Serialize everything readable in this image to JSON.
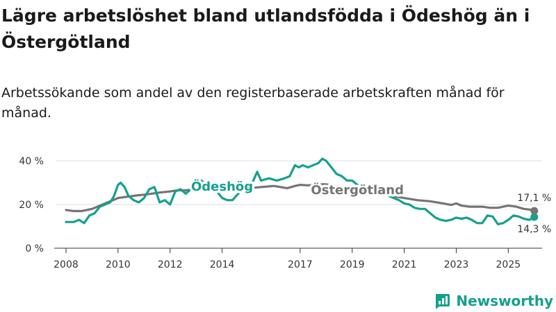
{
  "title": "Lägre arbetslöshet bland utlandsfödda i Ödeshög än i Östergötland",
  "subtitle": "Arbetssökande som andel av den registerbaserade arbetskraften månad för månad.",
  "brand": {
    "name": "Newsworthy"
  },
  "colors": {
    "odeshog": "#14a08e",
    "ostergotland": "#747474",
    "grid": "#dddddd",
    "axis": "#333333"
  },
  "chart_data": {
    "type": "line",
    "title": "Lägre arbetslöshet bland utlandsfödda i Ödeshög än i Östergötland",
    "subtitle": "Arbetssökande som andel av den registerbaserade arbetskraften månad för månad.",
    "xlabel": "",
    "ylabel": "",
    "xlim": [
      2007.6,
      2026.3
    ],
    "ylim": [
      0,
      40
    ],
    "grid": true,
    "legend": "inline labels",
    "x_ticks": [
      2008,
      2010,
      2012,
      2014,
      2017,
      2019,
      2021,
      2023,
      2025
    ],
    "x_tick_labels": [
      "2008",
      "2010",
      "2012",
      "2014",
      "2017",
      "2019",
      "2021",
      "2023",
      "2025"
    ],
    "y_ticks": [
      0,
      20,
      40
    ],
    "y_tick_labels": [
      "0 %",
      "20 %",
      "40 %"
    ],
    "series": [
      {
        "name": "Ödeshög",
        "label": "Ödeshög",
        "last_value_label": "14,3 %",
        "points": [
          [
            2008.0,
            12
          ],
          [
            2008.3,
            12
          ],
          [
            2008.5,
            13
          ],
          [
            2008.7,
            11.5
          ],
          [
            2008.9,
            15
          ],
          [
            2009.1,
            16
          ],
          [
            2009.3,
            19
          ],
          [
            2009.5,
            20
          ],
          [
            2009.7,
            21
          ],
          [
            2009.85,
            24
          ],
          [
            2010.0,
            29
          ],
          [
            2010.1,
            30
          ],
          [
            2010.25,
            28
          ],
          [
            2010.4,
            24
          ],
          [
            2010.6,
            22
          ],
          [
            2010.8,
            21
          ],
          [
            2011.0,
            23
          ],
          [
            2011.2,
            27
          ],
          [
            2011.4,
            28
          ],
          [
            2011.6,
            21
          ],
          [
            2011.8,
            22
          ],
          [
            2012.0,
            20
          ],
          [
            2012.2,
            26
          ],
          [
            2012.4,
            27
          ],
          [
            2012.6,
            25
          ],
          [
            2012.8,
            27
          ],
          [
            2013.0,
            28
          ],
          [
            2013.2,
            31
          ],
          [
            2013.4,
            29
          ],
          [
            2013.6,
            27
          ],
          [
            2013.8,
            26
          ],
          [
            2014.0,
            23
          ],
          [
            2014.2,
            22
          ],
          [
            2014.4,
            22
          ],
          [
            2014.7,
            26
          ],
          [
            2015.0,
            27
          ],
          [
            2015.2,
            31
          ],
          [
            2015.35,
            35
          ],
          [
            2015.5,
            31
          ],
          [
            2015.8,
            32
          ],
          [
            2016.1,
            31
          ],
          [
            2016.4,
            32
          ],
          [
            2016.6,
            33
          ],
          [
            2016.8,
            38
          ],
          [
            2016.95,
            37
          ],
          [
            2017.1,
            38
          ],
          [
            2017.3,
            37
          ],
          [
            2017.5,
            38
          ],
          [
            2017.7,
            39
          ],
          [
            2017.85,
            41
          ],
          [
            2018.0,
            40
          ],
          [
            2018.2,
            37
          ],
          [
            2018.4,
            34
          ],
          [
            2018.6,
            33
          ],
          [
            2018.8,
            31
          ],
          [
            2019.0,
            31
          ],
          [
            2019.2,
            29
          ],
          [
            2019.4,
            28
          ],
          [
            2019.6,
            27
          ],
          [
            2019.8,
            26
          ],
          [
            2020.0,
            26
          ],
          [
            2020.2,
            25
          ],
          [
            2020.4,
            24
          ],
          [
            2020.6,
            23
          ],
          [
            2020.8,
            22
          ],
          [
            2021.0,
            20.5
          ],
          [
            2021.2,
            20
          ],
          [
            2021.4,
            18.5
          ],
          [
            2021.6,
            18
          ],
          [
            2021.8,
            18
          ],
          [
            2022.0,
            16
          ],
          [
            2022.2,
            14
          ],
          [
            2022.4,
            13
          ],
          [
            2022.6,
            12.5
          ],
          [
            2022.8,
            13
          ],
          [
            2023.0,
            14
          ],
          [
            2023.2,
            13.5
          ],
          [
            2023.4,
            14
          ],
          [
            2023.6,
            13
          ],
          [
            2023.8,
            11.5
          ],
          [
            2024.0,
            11.5
          ],
          [
            2024.2,
            15
          ],
          [
            2024.4,
            14.5
          ],
          [
            2024.6,
            11
          ],
          [
            2024.8,
            11.5
          ],
          [
            2025.0,
            13
          ],
          [
            2025.2,
            15
          ],
          [
            2025.4,
            14.5
          ],
          [
            2025.6,
            13.5
          ],
          [
            2025.8,
            13
          ],
          [
            2025.9,
            13.5
          ],
          [
            2026.0,
            14.3
          ]
        ]
      },
      {
        "name": "Östergötland",
        "label": "Östergötland",
        "last_value_label": "17,1 %",
        "points": [
          [
            2008.0,
            17.5
          ],
          [
            2008.3,
            17
          ],
          [
            2008.6,
            17
          ],
          [
            2009.0,
            18
          ],
          [
            2009.3,
            19.5
          ],
          [
            2009.6,
            21
          ],
          [
            2010.0,
            23
          ],
          [
            2010.3,
            23.5
          ],
          [
            2010.6,
            24
          ],
          [
            2011.0,
            24.5
          ],
          [
            2011.3,
            25
          ],
          [
            2011.6,
            25.5
          ],
          [
            2012.0,
            26
          ],
          [
            2012.3,
            26.5
          ],
          [
            2012.6,
            26.5
          ],
          [
            2013.0,
            27
          ],
          [
            2013.5,
            27.5
          ],
          [
            2014.0,
            27
          ],
          [
            2014.5,
            27
          ],
          [
            2015.0,
            27.5
          ],
          [
            2015.5,
            28
          ],
          [
            2016.0,
            28.5
          ],
          [
            2016.5,
            27.5
          ],
          [
            2016.8,
            28.5
          ],
          [
            2017.0,
            29
          ],
          [
            2017.3,
            28.8
          ],
          [
            2017.6,
            29
          ],
          [
            2017.9,
            29.3
          ],
          [
            2018.2,
            29
          ],
          [
            2018.5,
            28
          ],
          [
            2019.0,
            27
          ],
          [
            2019.5,
            26
          ],
          [
            2020.0,
            25
          ],
          [
            2020.5,
            24
          ],
          [
            2021.0,
            23
          ],
          [
            2021.5,
            22
          ],
          [
            2022.0,
            21.5
          ],
          [
            2022.5,
            20.5
          ],
          [
            2022.8,
            19.8
          ],
          [
            2023.0,
            20.5
          ],
          [
            2023.2,
            19.5
          ],
          [
            2023.5,
            19
          ],
          [
            2024.0,
            19
          ],
          [
            2024.3,
            18.5
          ],
          [
            2024.6,
            18.5
          ],
          [
            2025.0,
            19.5
          ],
          [
            2025.3,
            19
          ],
          [
            2025.6,
            18
          ],
          [
            2025.9,
            17.6
          ],
          [
            2026.0,
            17.1
          ]
        ]
      }
    ]
  }
}
